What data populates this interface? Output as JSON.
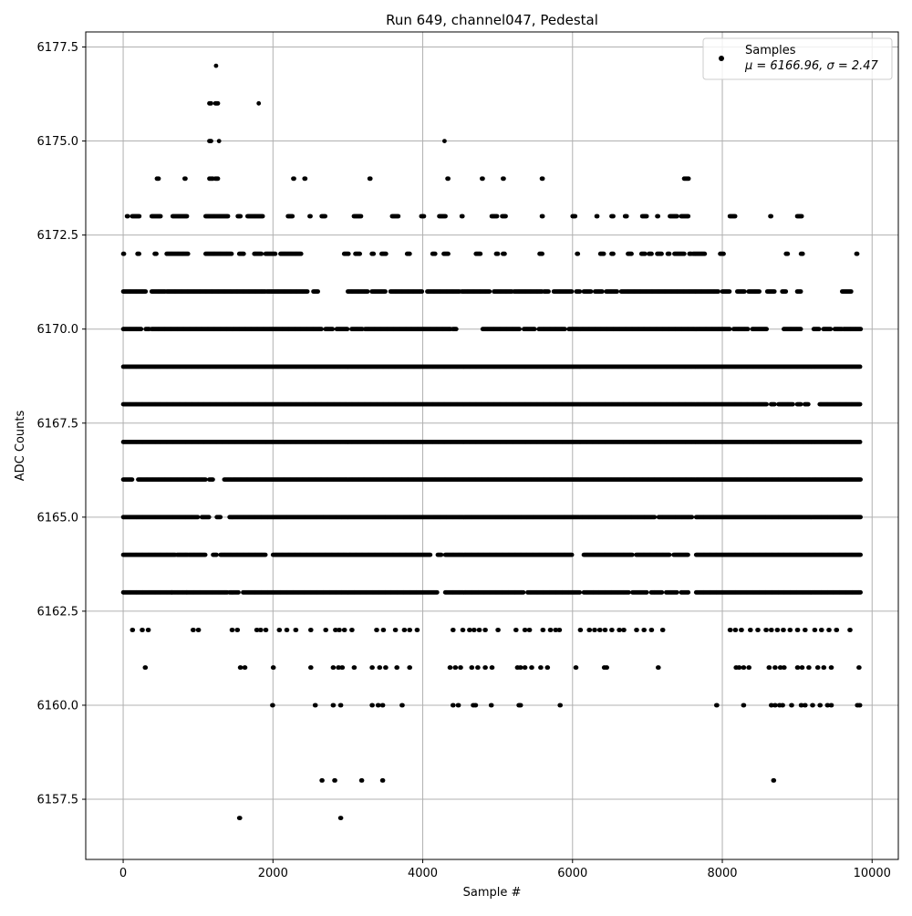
{
  "colors": {
    "marker": "#000000",
    "grid": "#b0b0b0",
    "axes": "#000000",
    "background": "#ffffff"
  },
  "chart_data": {
    "type": "scatter",
    "title": "Run 649, channel047, Pedestal",
    "xlabel": "Sample #",
    "ylabel": "ADC Counts",
    "xlim": [
      -500,
      10350
    ],
    "ylim": [
      6155.9,
      6177.9
    ],
    "xticks": [
      0,
      2000,
      4000,
      6000,
      8000,
      10000
    ],
    "yticks": [
      6157.5,
      6160.0,
      6162.5,
      6165.0,
      6167.5,
      6170.0,
      6172.5,
      6175.0,
      6177.5
    ],
    "xtick_labels": [
      "0",
      "2000",
      "4000",
      "6000",
      "8000",
      "10000"
    ],
    "ytick_labels": [
      "6157.5",
      "6160.0",
      "6162.5",
      "6165.0",
      "6167.5",
      "6170.0",
      "6172.5",
      "6175.0",
      "6177.5"
    ],
    "grid": true,
    "legend": {
      "placement": "top-right",
      "label": "Samples",
      "stats_text": "μ = 6166.96, σ = 2.47"
    },
    "series": [
      {
        "name": "Samples",
        "n_samples": 9850,
        "level_ranges": [
          {
            "y": 6157,
            "points": [
              1550,
              2900
            ]
          },
          {
            "y": 6158,
            "points": [
              2650,
              2820,
              3180,
              3460,
              8680
            ]
          },
          {
            "y": 6160,
            "points": [
              1990,
              2560,
              2800,
              2900,
              3320,
              3400,
              3460,
              3720,
              4400,
              4470,
              4670,
              4700,
              4910,
              5280,
              5300,
              5830,
              7920,
              8280,
              8650,
              8700,
              8760,
              8800,
              8920,
              9050,
              9100,
              9200,
              9300,
              9400,
              9450,
              9800,
              9830
            ]
          },
          {
            "y": 6161,
            "points": [
              290,
              1560,
              1620,
              2000,
              2500,
              2800,
              2870,
              2920,
              3080,
              3320,
              3420,
              3500,
              3650,
              3820,
              4360,
              4430,
              4500,
              4650,
              4730,
              4830,
              4920,
              5260,
              5300,
              5360,
              5450,
              5570,
              5660,
              6040,
              6420,
              6450,
              7140,
              8180,
              8220,
              8280,
              8350,
              8620,
              8700,
              8770,
              8820,
              9000,
              9060,
              9150,
              9270,
              9350,
              9450,
              9820
            ]
          },
          {
            "y": 6162,
            "points": [
              120,
              250,
              330,
              930,
              1000,
              1450,
              1520,
              1780,
              1830,
              1900,
              2080,
              2180,
              2300,
              2500,
              2700,
              2830,
              2880,
              2950,
              3050,
              3380,
              3470,
              3630,
              3750,
              3820,
              3920,
              4400,
              4530,
              4620,
              4680,
              4750,
              4830,
              5000,
              5240,
              5360,
              5420,
              5600,
              5700,
              5770,
              5820,
              6100,
              6220,
              6290,
              6360,
              6430,
              6520,
              6620,
              6680,
              6850,
              6950,
              7050,
              7200,
              8100,
              8170,
              8250,
              8370,
              8470,
              8580,
              8650,
              8730,
              8810,
              8900,
              9000,
              9100,
              9230,
              9320,
              9420,
              9520,
              9700
            ]
          }
        ],
        "level_bands": [
          {
            "y": 6177,
            "segments": [
              [
                1240,
                1250
              ]
            ]
          },
          {
            "y": 6176,
            "segments": [
              [
                1150,
                1180
              ],
              [
                1230,
                1270
              ],
              [
                1810,
                1820
              ]
            ]
          },
          {
            "y": 6175,
            "segments": [
              [
                1150,
                1180
              ],
              [
                1280,
                1290
              ],
              [
                4290,
                4300
              ]
            ]
          },
          {
            "y": 6174,
            "segments": [
              [
                450,
                480
              ],
              [
                820,
                840
              ],
              [
                1150,
                1200
              ],
              [
                1230,
                1270
              ],
              [
                2270,
                2290
              ],
              [
                2420,
                2440
              ],
              [
                3290,
                3310
              ],
              [
                4330,
                4350
              ],
              [
                4790,
                4810
              ],
              [
                5070,
                5090
              ],
              [
                5590,
                5610
              ],
              [
                7490,
                7560
              ]
            ]
          },
          {
            "y": 6173,
            "segments": [
              [
                50,
                70
              ],
              [
                120,
                220
              ],
              [
                380,
                500
              ],
              [
                660,
                860
              ],
              [
                1100,
                1400
              ],
              [
                1530,
                1570
              ],
              [
                1660,
                1870
              ],
              [
                2200,
                2270
              ],
              [
                2490,
                2510
              ],
              [
                2650,
                2700
              ],
              [
                3080,
                3180
              ],
              [
                3590,
                3680
              ],
              [
                3980,
                4020
              ],
              [
                4220,
                4310
              ],
              [
                4520,
                4540
              ],
              [
                4920,
                5000
              ],
              [
                5060,
                5110
              ],
              [
                5590,
                5610
              ],
              [
                6000,
                6040
              ],
              [
                6320,
                6340
              ],
              [
                6520,
                6550
              ],
              [
                6700,
                6730
              ],
              [
                6930,
                6990
              ],
              [
                7130,
                7150
              ],
              [
                7300,
                7400
              ],
              [
                7450,
                7550
              ],
              [
                8100,
                8180
              ],
              [
                8640,
                8660
              ],
              [
                9000,
                9070
              ]
            ]
          },
          {
            "y": 6172,
            "segments": [
              [
                0,
                20
              ],
              [
                190,
                220
              ],
              [
                420,
                450
              ],
              [
                580,
                650
              ],
              [
                650,
                870
              ],
              [
                1100,
                1450
              ],
              [
                1550,
                1620
              ],
              [
                1750,
                1850
              ],
              [
                1900,
                2040
              ],
              [
                2100,
                2380
              ],
              [
                2950,
                3010
              ],
              [
                3100,
                3160
              ],
              [
                3320,
                3350
              ],
              [
                3450,
                3510
              ],
              [
                3790,
                3830
              ],
              [
                4130,
                4170
              ],
              [
                4280,
                4350
              ],
              [
                4710,
                4770
              ],
              [
                4980,
                5010
              ],
              [
                5070,
                5100
              ],
              [
                5560,
                5600
              ],
              [
                6060,
                6080
              ],
              [
                6370,
                6420
              ],
              [
                6520,
                6550
              ],
              [
                6740,
                6790
              ],
              [
                6920,
                6970
              ],
              [
                7020,
                7060
              ],
              [
                7130,
                7200
              ],
              [
                7270,
                7300
              ],
              [
                7360,
                7500
              ],
              [
                7560,
                7590
              ],
              [
                7610,
                7770
              ],
              [
                7970,
                8020
              ],
              [
                8850,
                8880
              ],
              [
                9050,
                9080
              ],
              [
                9790,
                9810
              ]
            ]
          },
          {
            "y": 6171,
            "segments": [
              [
                0,
                300
              ],
              [
                380,
                560
              ],
              [
                580,
                1900
              ],
              [
                1920,
                2460
              ],
              [
                2540,
                2600
              ],
              [
                3000,
                3270
              ],
              [
                3320,
                3500
              ],
              [
                3570,
                4000
              ],
              [
                4060,
                4500
              ],
              [
                4520,
                4900
              ],
              [
                4950,
                5200
              ],
              [
                5220,
                5600
              ],
              [
                5620,
                5680
              ],
              [
                5750,
                6000
              ],
              [
                6050,
                6100
              ],
              [
                6150,
                6250
              ],
              [
                6300,
                6400
              ],
              [
                6450,
                6600
              ],
              [
                6650,
                7950
              ],
              [
                8000,
                8100
              ],
              [
                8200,
                8300
              ],
              [
                8350,
                8500
              ],
              [
                8600,
                8700
              ],
              [
                8800,
                8850
              ],
              [
                9000,
                9050
              ],
              [
                9600,
                9720
              ]
            ]
          },
          {
            "y": 6170,
            "segments": [
              [
                0,
                250
              ],
              [
                300,
                350
              ],
              [
                380,
                2650
              ],
              [
                2700,
                2800
              ],
              [
                2850,
                3000
              ],
              [
                3050,
                3200
              ],
              [
                3230,
                4380
              ],
              [
                4400,
                4450
              ],
              [
                4800,
                5300
              ],
              [
                5350,
                5500
              ],
              [
                5550,
                5900
              ],
              [
                5950,
                8100
              ],
              [
                8150,
                8350
              ],
              [
                8400,
                8600
              ],
              [
                8820,
                9050
              ],
              [
                9220,
                9300
              ],
              [
                9350,
                9450
              ],
              [
                9500,
                9600
              ],
              [
                9620,
                9850
              ]
            ]
          },
          {
            "y": 6169,
            "segments": [
              [
                0,
                9850
              ]
            ]
          },
          {
            "y": 6168,
            "segments": [
              [
                0,
                8600
              ],
              [
                8650,
                8700
              ],
              [
                8750,
                8950
              ],
              [
                9000,
                9050
              ],
              [
                9100,
                9150
              ],
              [
                9300,
                9850
              ]
            ]
          },
          {
            "y": 6167,
            "segments": [
              [
                0,
                9850
              ]
            ]
          },
          {
            "y": 6166,
            "segments": [
              [
                0,
                120
              ],
              [
                200,
                1100
              ],
              [
                1150,
                1200
              ],
              [
                1350,
                9850
              ]
            ]
          },
          {
            "y": 6165,
            "segments": [
              [
                0,
                1000
              ],
              [
                1050,
                1150
              ],
              [
                1250,
                1300
              ],
              [
                1420,
                7100
              ],
              [
                7150,
                7600
              ],
              [
                7650,
                9850
              ]
            ]
          },
          {
            "y": 6164,
            "segments": [
              [
                0,
                700
              ],
              [
                720,
                870
              ],
              [
                880,
                1100
              ],
              [
                1200,
                1250
              ],
              [
                1300,
                1900
              ],
              [
                2000,
                4100
              ],
              [
                4200,
                4250
              ],
              [
                4300,
                6000
              ],
              [
                6150,
                6800
              ],
              [
                6850,
                7300
              ],
              [
                7350,
                7550
              ],
              [
                7650,
                9850
              ]
            ]
          },
          {
            "y": 6163,
            "segments": [
              [
                0,
                650
              ],
              [
                650,
                850
              ],
              [
                850,
                1400
              ],
              [
                1420,
                1550
              ],
              [
                1600,
                4200
              ],
              [
                4300,
                5350
              ],
              [
                5400,
                6100
              ],
              [
                6150,
                6750
              ],
              [
                6800,
                7000
              ],
              [
                7050,
                7200
              ],
              [
                7250,
                7400
              ],
              [
                7450,
                7550
              ],
              [
                7650,
                9850
              ]
            ]
          }
        ]
      }
    ]
  }
}
